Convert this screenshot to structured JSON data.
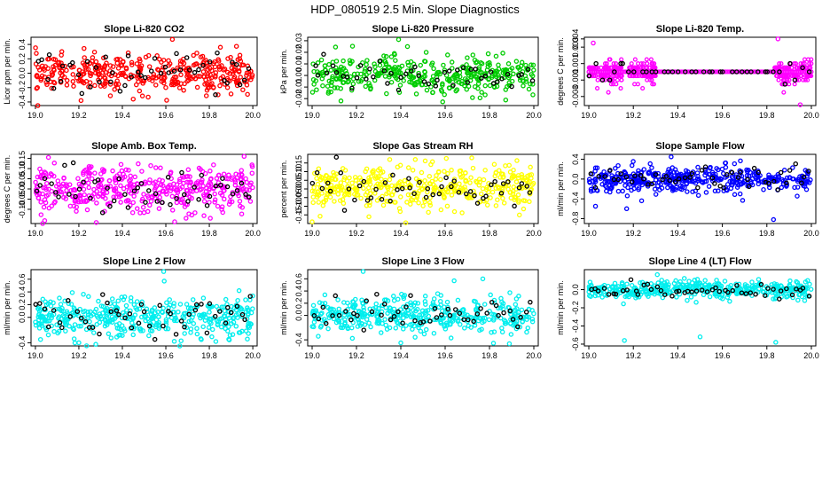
{
  "title": "HDP_080519  2.5 Min. Slope Diagnostics",
  "chart_data": [
    {
      "type": "scatter",
      "title": "Slope Li-820 CO2",
      "ylabel": "Licor ppm per min.",
      "color": "#ff0000",
      "xlim": [
        18.98,
        20.02
      ],
      "ylim": [
        -0.45,
        0.5
      ],
      "xticks": [
        19.0,
        19.2,
        19.4,
        19.6,
        19.8,
        20.0
      ],
      "yticks": [
        -0.4,
        -0.2,
        0.0,
        0.2,
        0.4
      ],
      "ytick_labels": [
        "-0.4",
        "-0.2",
        "0.0",
        "0.2",
        "0.4"
      ],
      "n_points": 380,
      "spread": 0.13,
      "overlay_color": "#000000",
      "n_overlay": 48,
      "outliers": [
        [
          19.63,
          0.47
        ],
        [
          19.21,
          -0.38
        ],
        [
          19.45,
          -0.36
        ]
      ]
    },
    {
      "type": "scatter",
      "title": "Slope Li-820 Pressure",
      "ylabel": "kPa per min.",
      "color": "#00cc00",
      "xlim": [
        18.98,
        20.02
      ],
      "ylim": [
        -0.026,
        0.033
      ],
      "xticks": [
        19.0,
        19.2,
        19.4,
        19.6,
        19.8,
        20.0
      ],
      "yticks": [
        -0.02,
        -0.01,
        0.0,
        0.01,
        0.02,
        0.03
      ],
      "ytick_labels": [
        "-0.02",
        "-0.01",
        "0.00",
        "0.01",
        "0.02",
        "0.03"
      ],
      "n_points": 380,
      "spread": 0.008,
      "overlay_color": "#000000",
      "n_overlay": 48,
      "outliers": [
        [
          19.39,
          0.031
        ],
        [
          19.13,
          -0.022
        ],
        [
          19.43,
          0.025
        ]
      ]
    },
    {
      "type": "scatter",
      "title": "Slope Li-820 Temp.",
      "ylabel": "degrees C per min.",
      "color": "#ff00ff",
      "xlim": [
        18.98,
        20.02
      ],
      "ylim": [
        -0.0041,
        0.0042
      ],
      "xticks": [
        19.0,
        19.2,
        19.4,
        19.6,
        19.8,
        20.0
      ],
      "yticks": [
        -0.003,
        -0.001,
        0.001,
        0.003
      ],
      "ytick_labels": [
        "-0.003",
        "-0.001",
        "0.001",
        "0.003"
      ],
      "extra_ytick_labels": [
        [
          0.004,
          "0.004"
        ]
      ],
      "quantized": true,
      "step": 0.0005,
      "overlay_color": "#000000",
      "n_overlay": 40,
      "noisy_ranges": [
        [
          19.0,
          19.15
        ],
        [
          19.18,
          19.3
        ],
        [
          19.83,
          20.0
        ]
      ],
      "n_points": 300,
      "outliers": [
        [
          19.02,
          0.0035
        ],
        [
          19.85,
          0.004
        ],
        [
          19.95,
          -0.004
        ]
      ]
    },
    {
      "type": "scatter",
      "title": "Slope Amb. Box Temp.",
      "ylabel": "degrees C per min.",
      "color": "#ff00ff",
      "xlim": [
        18.98,
        20.02
      ],
      "ylim": [
        -0.17,
        0.17
      ],
      "xticks": [
        19.0,
        19.2,
        19.4,
        19.6,
        19.8,
        20.0
      ],
      "yticks": [
        -0.1,
        -0.05,
        0.0,
        0.05,
        0.1,
        0.15
      ],
      "ytick_labels": [
        "-0.10",
        "-0.05",
        "0.00",
        "0.05",
        "0.10",
        "0.15"
      ],
      "n_points": 420,
      "spread": 0.055,
      "overlay_color": "#000000",
      "n_overlay": 50,
      "outliers": [
        [
          19.06,
          0.155
        ],
        [
          19.28,
          -0.165
        ],
        [
          19.96,
          0.16
        ]
      ]
    },
    {
      "type": "scatter",
      "title": "Slope Gas Stream RH",
      "ylabel": "percent per min.",
      "color": "#ffff00",
      "xlim": [
        18.98,
        20.02
      ],
      "ylim": [
        -0.2,
        0.2
      ],
      "xticks": [
        19.0,
        19.2,
        19.4,
        19.6,
        19.8,
        20.0
      ],
      "yticks": [
        -0.15,
        -0.1,
        -0.05,
        0.0,
        0.05,
        0.1,
        0.15
      ],
      "ytick_labels": [
        "-0.15",
        "-0.10",
        "-0.05",
        "0.00",
        "0.05",
        "0.10",
        "0.15"
      ],
      "n_points": 420,
      "spread": 0.065,
      "overlay_color": "#000000",
      "n_overlay": 50,
      "outliers": [
        [
          19.0,
          -0.19
        ],
        [
          19.72,
          0.18
        ],
        [
          19.35,
          0.17
        ]
      ]
    },
    {
      "type": "scatter",
      "title": "Slope Sample Flow",
      "ylabel": "ml/min per min.",
      "color": "#0000ff",
      "xlim": [
        18.98,
        20.02
      ],
      "ylim": [
        -0.9,
        0.5
      ],
      "xticks": [
        19.0,
        19.2,
        19.4,
        19.6,
        19.8,
        20.0
      ],
      "yticks": [
        -0.8,
        -0.4,
        0.0,
        0.4
      ],
      "ytick_labels": [
        "-0.8",
        "-0.4",
        "0.0",
        "0.4"
      ],
      "n_points": 420,
      "spread": 0.13,
      "overlay_color": "#000000",
      "n_overlay": 50,
      "outliers": [
        [
          19.37,
          0.45
        ],
        [
          19.83,
          -0.82
        ],
        [
          19.17,
          -0.6
        ],
        [
          19.03,
          -0.55
        ]
      ]
    },
    {
      "type": "scatter",
      "title": "Slope Line 2 Flow",
      "ylabel": "ml/min per min.",
      "color": "#00eeee",
      "xlim": [
        18.98,
        20.02
      ],
      "ylim": [
        -0.45,
        0.75
      ],
      "xticks": [
        19.0,
        19.2,
        19.4,
        19.6,
        19.8,
        20.0
      ],
      "yticks": [
        -0.4,
        0.0,
        0.2,
        0.4,
        0.6
      ],
      "ytick_labels": [
        "-0.4",
        "0.0",
        "0.2",
        "0.4",
        "0.6"
      ],
      "n_points": 420,
      "spread": 0.16,
      "overlay_color": "#000000",
      "n_overlay": 50,
      "outliers": [
        [
          19.59,
          0.72
        ],
        [
          19.2,
          -0.4
        ],
        [
          19.83,
          -0.38
        ]
      ]
    },
    {
      "type": "scatter",
      "title": "Slope Line 3 Flow",
      "ylabel": "ml/min per min.",
      "color": "#00eeee",
      "xlim": [
        18.98,
        20.02
      ],
      "ylim": [
        -0.5,
        0.75
      ],
      "xticks": [
        19.0,
        19.2,
        19.4,
        19.6,
        19.8,
        20.0
      ],
      "yticks": [
        -0.4,
        0.0,
        0.2,
        0.4,
        0.6
      ],
      "ytick_labels": [
        "-0.4",
        "0.0",
        "0.2",
        "0.4",
        "0.6"
      ],
      "n_points": 420,
      "spread": 0.15,
      "overlay_color": "#000000",
      "n_overlay": 50,
      "outliers": [
        [
          19.23,
          0.72
        ],
        [
          19.4,
          -0.45
        ],
        [
          19.77,
          0.6
        ]
      ]
    },
    {
      "type": "scatter",
      "title": "Slope Line 4 (LT) Flow",
      "ylabel": "ml/min per min.",
      "color": "#00eeee",
      "xlim": [
        18.98,
        20.02
      ],
      "ylim": [
        -0.62,
        0.22
      ],
      "xticks": [
        19.0,
        19.2,
        19.4,
        19.6,
        19.8,
        20.0
      ],
      "yticks": [
        -0.6,
        -0.4,
        -0.2,
        0.0
      ],
      "ytick_labels": [
        "-0.6",
        "-0.4",
        "-0.2",
        "0.0"
      ],
      "n_points": 420,
      "spread": 0.05,
      "overlay_color": "#000000",
      "n_overlay": 50,
      "outliers": [
        [
          19.16,
          -0.56
        ],
        [
          19.5,
          -0.52
        ],
        [
          19.84,
          -0.58
        ],
        [
          19.97,
          -0.12
        ]
      ]
    }
  ]
}
